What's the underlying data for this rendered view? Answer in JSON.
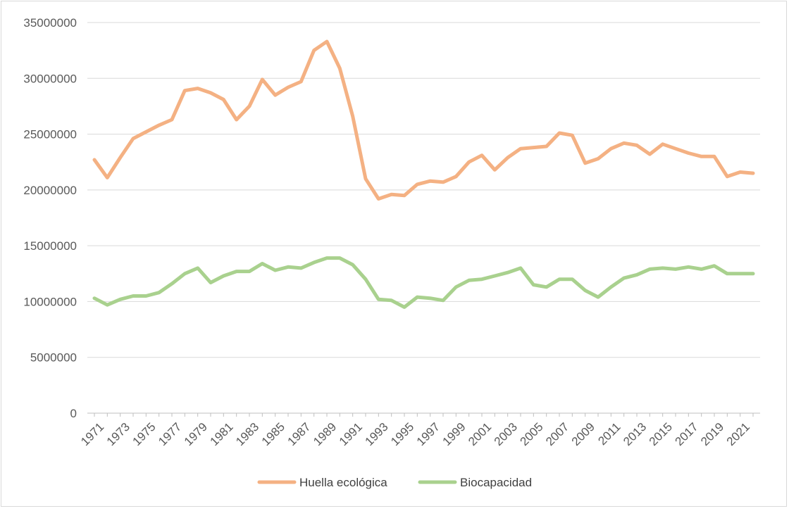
{
  "chart_data": {
    "type": "line",
    "title": "",
    "xlabel": "",
    "ylabel": "",
    "ylim": [
      0,
      35000000
    ],
    "yticks": [
      0,
      5000000,
      10000000,
      15000000,
      20000000,
      25000000,
      30000000,
      35000000
    ],
    "ytick_labels": [
      "0",
      "5000000",
      "10000000",
      "15000000",
      "20000000",
      "25000000",
      "30000000",
      "35000000"
    ],
    "x": [
      1971,
      1972,
      1973,
      1974,
      1975,
      1976,
      1977,
      1978,
      1979,
      1980,
      1981,
      1982,
      1983,
      1984,
      1985,
      1986,
      1987,
      1988,
      1989,
      1990,
      1991,
      1992,
      1993,
      1994,
      1995,
      1996,
      1997,
      1998,
      1999,
      2000,
      2001,
      2002,
      2003,
      2004,
      2005,
      2006,
      2007,
      2008,
      2009,
      2010,
      2011,
      2012,
      2013,
      2014,
      2015,
      2016,
      2017,
      2018,
      2019,
      2020,
      2021,
      2022
    ],
    "xtick_labels": [
      "1971",
      "1973",
      "1975",
      "1977",
      "1979",
      "1981",
      "1983",
      "1985",
      "1987",
      "1989",
      "1991",
      "1993",
      "1995",
      "1997",
      "1999",
      "2001",
      "2003",
      "2005",
      "2007",
      "2009",
      "2011",
      "2013",
      "2015",
      "2017",
      "2019",
      "2021"
    ],
    "grid": true,
    "legend_position": "bottom",
    "series": [
      {
        "name": "Huella ecológica",
        "color": "#f4b183",
        "values": [
          22700000,
          21100000,
          22900000,
          24600000,
          25200000,
          25800000,
          26300000,
          28900000,
          29100000,
          28700000,
          28100000,
          26300000,
          27500000,
          29900000,
          28500000,
          29200000,
          29700000,
          32500000,
          33300000,
          30900000,
          26600000,
          21000000,
          19200000,
          19600000,
          19500000,
          20500000,
          20800000,
          20700000,
          21200000,
          22500000,
          23100000,
          21800000,
          22900000,
          23700000,
          23800000,
          23900000,
          25100000,
          24900000,
          22400000,
          22800000,
          23700000,
          24200000,
          24000000,
          23200000,
          24100000,
          23700000,
          23300000,
          23000000,
          23000000,
          21200000,
          21600000,
          21500000
        ]
      },
      {
        "name": "Biocapacidad",
        "color": "#a9d18e",
        "values": [
          10300000,
          9700000,
          10200000,
          10500000,
          10500000,
          10800000,
          11600000,
          12500000,
          13000000,
          11700000,
          12300000,
          12700000,
          12700000,
          13400000,
          12800000,
          13100000,
          13000000,
          13500000,
          13900000,
          13900000,
          13300000,
          12000000,
          10200000,
          10100000,
          9500000,
          10400000,
          10300000,
          10100000,
          11300000,
          11900000,
          12000000,
          12300000,
          12600000,
          13000000,
          11500000,
          11300000,
          12000000,
          12000000,
          11000000,
          10400000,
          11300000,
          12100000,
          12400000,
          12900000,
          13000000,
          12900000,
          13100000,
          12900000,
          13200000,
          12500000,
          12500000,
          12500000
        ]
      }
    ]
  }
}
